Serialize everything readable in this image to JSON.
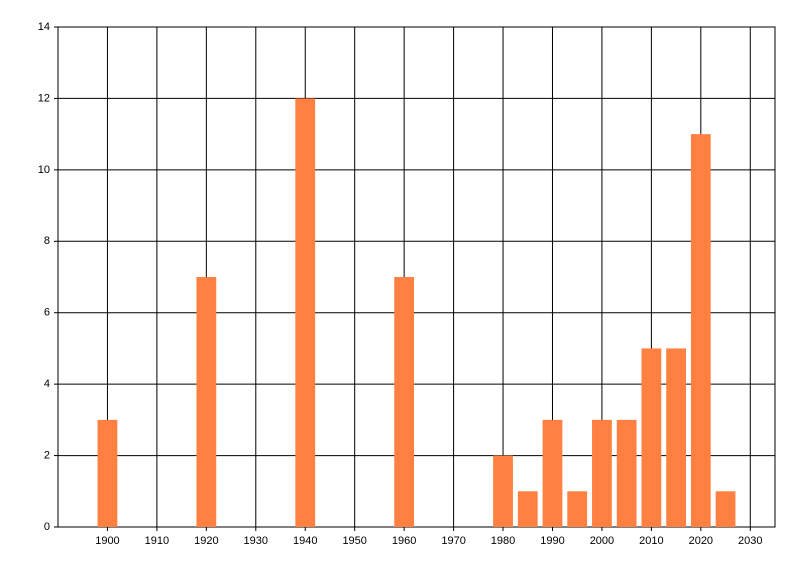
{
  "chart_data": {
    "type": "bar",
    "x": [
      1900,
      1920,
      1940,
      1960,
      1980,
      1985,
      1990,
      1995,
      2000,
      2005,
      2010,
      2015,
      2020,
      2025
    ],
    "values": [
      3,
      7,
      12,
      7,
      2,
      1,
      3,
      1,
      3,
      3,
      5,
      5,
      11,
      1
    ],
    "color": "#ff8040",
    "xlim": [
      1890,
      2035
    ],
    "xticks": [
      1900,
      1910,
      1920,
      1930,
      1940,
      1950,
      1960,
      1970,
      1980,
      1990,
      2000,
      2010,
      2020,
      2030
    ],
    "ylim": [
      0,
      14
    ],
    "yticks": [
      0,
      2,
      4,
      6,
      8,
      10,
      12,
      14
    ],
    "grid": true
  }
}
